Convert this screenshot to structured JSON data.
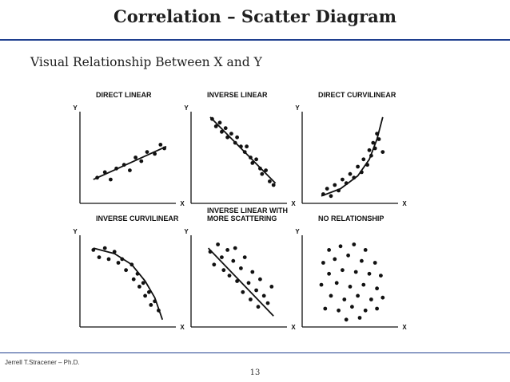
{
  "title": "Correlation – Scatter Diagram",
  "subtitle": "Visual Relationship Between X and Y",
  "footer": {
    "author": "Jerrell T.Stracener – Ph.D.",
    "page_number": "13"
  },
  "axes": {
    "x_label": "X",
    "y_label": "Y"
  },
  "panels": [
    {
      "title_lines": [
        "DIRECT LINEAR"
      ],
      "points": [
        [
          0.18,
          0.28
        ],
        [
          0.26,
          0.34
        ],
        [
          0.32,
          0.26
        ],
        [
          0.38,
          0.38
        ],
        [
          0.46,
          0.42
        ],
        [
          0.52,
          0.36
        ],
        [
          0.58,
          0.5
        ],
        [
          0.64,
          0.46
        ],
        [
          0.7,
          0.56
        ],
        [
          0.78,
          0.54
        ],
        [
          0.84,
          0.64
        ],
        [
          0.88,
          0.6
        ]
      ],
      "line": [
        [
          0.14,
          0.26
        ],
        [
          0.9,
          0.62
        ]
      ]
    },
    {
      "title_lines": [
        "INVERSE LINEAR"
      ],
      "points": [
        [
          0.22,
          0.92
        ],
        [
          0.26,
          0.84
        ],
        [
          0.3,
          0.88
        ],
        [
          0.32,
          0.78
        ],
        [
          0.36,
          0.82
        ],
        [
          0.38,
          0.72
        ],
        [
          0.42,
          0.76
        ],
        [
          0.46,
          0.66
        ],
        [
          0.48,
          0.72
        ],
        [
          0.52,
          0.62
        ],
        [
          0.56,
          0.56
        ],
        [
          0.58,
          0.62
        ],
        [
          0.62,
          0.5
        ],
        [
          0.64,
          0.44
        ],
        [
          0.68,
          0.48
        ],
        [
          0.72,
          0.38
        ],
        [
          0.74,
          0.32
        ],
        [
          0.78,
          0.36
        ],
        [
          0.82,
          0.24
        ],
        [
          0.86,
          0.2
        ]
      ],
      "line": [
        [
          0.2,
          0.94
        ],
        [
          0.88,
          0.22
        ]
      ]
    },
    {
      "title_lines": [
        "DIRECT CURVILINEAR"
      ],
      "points": [
        [
          0.22,
          0.1
        ],
        [
          0.26,
          0.16
        ],
        [
          0.3,
          0.08
        ],
        [
          0.34,
          0.2
        ],
        [
          0.38,
          0.14
        ],
        [
          0.42,
          0.26
        ],
        [
          0.46,
          0.22
        ],
        [
          0.5,
          0.32
        ],
        [
          0.54,
          0.28
        ],
        [
          0.58,
          0.4
        ],
        [
          0.62,
          0.34
        ],
        [
          0.64,
          0.48
        ],
        [
          0.68,
          0.42
        ],
        [
          0.7,
          0.58
        ],
        [
          0.72,
          0.52
        ],
        [
          0.74,
          0.66
        ],
        [
          0.76,
          0.6
        ],
        [
          0.78,
          0.76
        ],
        [
          0.8,
          0.7
        ],
        [
          0.84,
          0.56
        ]
      ],
      "line": [
        [
          0.2,
          0.08
        ],
        [
          0.4,
          0.16
        ],
        [
          0.58,
          0.3
        ],
        [
          0.7,
          0.48
        ],
        [
          0.78,
          0.7
        ],
        [
          0.84,
          0.94
        ]
      ]
    },
    {
      "title_lines": [
        "INVERSE CURVILINEAR"
      ],
      "points": [
        [
          0.14,
          0.84
        ],
        [
          0.2,
          0.76
        ],
        [
          0.26,
          0.86
        ],
        [
          0.3,
          0.74
        ],
        [
          0.36,
          0.82
        ],
        [
          0.4,
          0.7
        ],
        [
          0.44,
          0.74
        ],
        [
          0.48,
          0.62
        ],
        [
          0.54,
          0.68
        ],
        [
          0.56,
          0.52
        ],
        [
          0.6,
          0.58
        ],
        [
          0.62,
          0.44
        ],
        [
          0.66,
          0.48
        ],
        [
          0.68,
          0.34
        ],
        [
          0.72,
          0.38
        ],
        [
          0.74,
          0.24
        ],
        [
          0.78,
          0.28
        ],
        [
          0.82,
          0.18
        ]
      ],
      "line": [
        [
          0.14,
          0.86
        ],
        [
          0.36,
          0.8
        ],
        [
          0.54,
          0.68
        ],
        [
          0.68,
          0.5
        ],
        [
          0.78,
          0.32
        ],
        [
          0.86,
          0.08
        ]
      ]
    },
    {
      "title_lines": [
        "INVERSE LINEAR WITH",
        "MORE SCATTERING"
      ],
      "points": [
        [
          0.2,
          0.82
        ],
        [
          0.24,
          0.68
        ],
        [
          0.28,
          0.9
        ],
        [
          0.32,
          0.76
        ],
        [
          0.34,
          0.62
        ],
        [
          0.38,
          0.84
        ],
        [
          0.4,
          0.56
        ],
        [
          0.44,
          0.72
        ],
        [
          0.46,
          0.86
        ],
        [
          0.48,
          0.5
        ],
        [
          0.52,
          0.64
        ],
        [
          0.54,
          0.38
        ],
        [
          0.56,
          0.76
        ],
        [
          0.6,
          0.48
        ],
        [
          0.62,
          0.3
        ],
        [
          0.64,
          0.6
        ],
        [
          0.68,
          0.4
        ],
        [
          0.7,
          0.22
        ],
        [
          0.72,
          0.52
        ],
        [
          0.76,
          0.34
        ],
        [
          0.8,
          0.26
        ],
        [
          0.84,
          0.44
        ]
      ],
      "line": [
        [
          0.18,
          0.86
        ],
        [
          0.86,
          0.12
        ]
      ]
    },
    {
      "title_lines": [
        "NO RELATIONSHIP"
      ],
      "points": [
        [
          0.28,
          0.84
        ],
        [
          0.4,
          0.88
        ],
        [
          0.54,
          0.9
        ],
        [
          0.66,
          0.84
        ],
        [
          0.22,
          0.7
        ],
        [
          0.34,
          0.74
        ],
        [
          0.48,
          0.78
        ],
        [
          0.62,
          0.72
        ],
        [
          0.76,
          0.7
        ],
        [
          0.28,
          0.58
        ],
        [
          0.42,
          0.62
        ],
        [
          0.56,
          0.6
        ],
        [
          0.7,
          0.58
        ],
        [
          0.82,
          0.56
        ],
        [
          0.2,
          0.46
        ],
        [
          0.36,
          0.48
        ],
        [
          0.5,
          0.44
        ],
        [
          0.64,
          0.46
        ],
        [
          0.78,
          0.42
        ],
        [
          0.3,
          0.34
        ],
        [
          0.44,
          0.3
        ],
        [
          0.58,
          0.34
        ],
        [
          0.72,
          0.3
        ],
        [
          0.84,
          0.32
        ],
        [
          0.24,
          0.2
        ],
        [
          0.38,
          0.18
        ],
        [
          0.52,
          0.22
        ],
        [
          0.66,
          0.18
        ],
        [
          0.78,
          0.2
        ],
        [
          0.46,
          0.08
        ],
        [
          0.6,
          0.1
        ]
      ],
      "line": []
    }
  ]
}
